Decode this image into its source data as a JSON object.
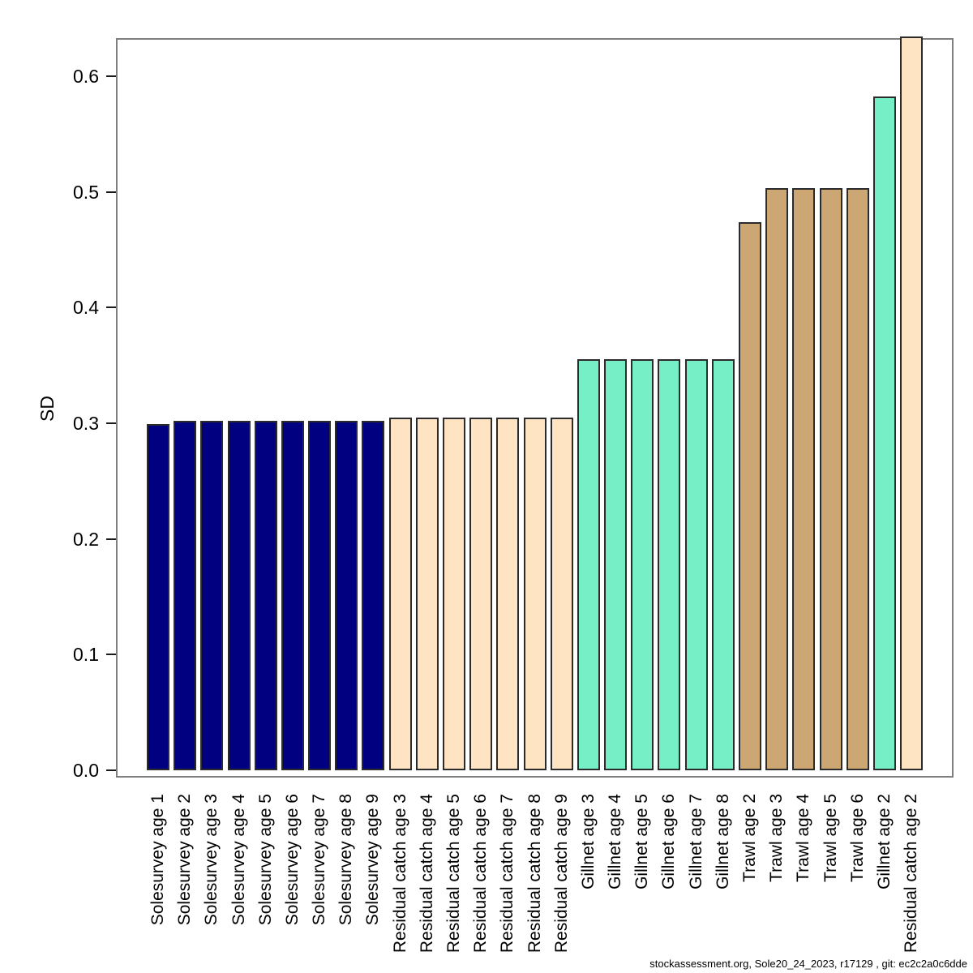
{
  "chart_data": {
    "type": "bar",
    "title": "",
    "xlabel": "",
    "ylabel": "SD",
    "ylim": [
      0,
      0.639
    ],
    "grid": false,
    "legend": "none",
    "ytick_values": [
      0,
      0.1,
      0.2,
      0.3,
      0.4,
      0.5,
      0.6
    ],
    "ytick_labels": [
      "0.0",
      "0.1",
      "0.2",
      "0.3",
      "0.4",
      "0.5",
      "0.6"
    ],
    "fleet_colors": {
      "Solesurvey": "#000080",
      "Residual catch": "#FFE4C4",
      "Gillnet": "#76EEC6",
      "Trawl": "#CCA773"
    },
    "bar_border_color": "#2b2b2b",
    "bars": [
      {
        "label": "Solesurvey age 1",
        "fleet": "Solesurvey",
        "value": 0.299
      },
      {
        "label": "Solesurvey age 2",
        "fleet": "Solesurvey",
        "value": 0.302
      },
      {
        "label": "Solesurvey age 3",
        "fleet": "Solesurvey",
        "value": 0.302
      },
      {
        "label": "Solesurvey age 4",
        "fleet": "Solesurvey",
        "value": 0.302
      },
      {
        "label": "Solesurvey age 5",
        "fleet": "Solesurvey",
        "value": 0.302
      },
      {
        "label": "Solesurvey age 6",
        "fleet": "Solesurvey",
        "value": 0.302
      },
      {
        "label": "Solesurvey age 7",
        "fleet": "Solesurvey",
        "value": 0.302
      },
      {
        "label": "Solesurvey age 8",
        "fleet": "Solesurvey",
        "value": 0.302
      },
      {
        "label": "Solesurvey age 9",
        "fleet": "Solesurvey",
        "value": 0.302
      },
      {
        "label": "Residual catch age 3",
        "fleet": "Residual catch",
        "value": 0.305
      },
      {
        "label": "Residual catch age 4",
        "fleet": "Residual catch",
        "value": 0.305
      },
      {
        "label": "Residual catch age 5",
        "fleet": "Residual catch",
        "value": 0.305
      },
      {
        "label": "Residual catch age 6",
        "fleet": "Residual catch",
        "value": 0.305
      },
      {
        "label": "Residual catch age 7",
        "fleet": "Residual catch",
        "value": 0.305
      },
      {
        "label": "Residual catch age 8",
        "fleet": "Residual catch",
        "value": 0.305
      },
      {
        "label": "Residual catch age 9",
        "fleet": "Residual catch",
        "value": 0.305
      },
      {
        "label": "Gillnet age 3",
        "fleet": "Gillnet",
        "value": 0.355
      },
      {
        "label": "Gillnet age 4",
        "fleet": "Gillnet",
        "value": 0.355
      },
      {
        "label": "Gillnet age 5",
        "fleet": "Gillnet",
        "value": 0.355
      },
      {
        "label": "Gillnet age 6",
        "fleet": "Gillnet",
        "value": 0.355
      },
      {
        "label": "Gillnet age 7",
        "fleet": "Gillnet",
        "value": 0.355
      },
      {
        "label": "Gillnet age 8",
        "fleet": "Gillnet",
        "value": 0.355
      },
      {
        "label": "Trawl age 2",
        "fleet": "Trawl",
        "value": 0.474
      },
      {
        "label": "Trawl age 3",
        "fleet": "Trawl",
        "value": 0.503
      },
      {
        "label": "Trawl age 4",
        "fleet": "Trawl",
        "value": 0.503
      },
      {
        "label": "Trawl age 5",
        "fleet": "Trawl",
        "value": 0.503
      },
      {
        "label": "Trawl age 6",
        "fleet": "Trawl",
        "value": 0.503
      },
      {
        "label": "Gillnet age 2",
        "fleet": "Gillnet",
        "value": 0.582
      },
      {
        "label": "Residual catch age 2",
        "fleet": "Residual catch",
        "value": 0.634
      }
    ]
  },
  "footer": {
    "text": "stockassessment.org, Sole20_24_2023, r17129 , git: ec2c2a0c6dde"
  }
}
